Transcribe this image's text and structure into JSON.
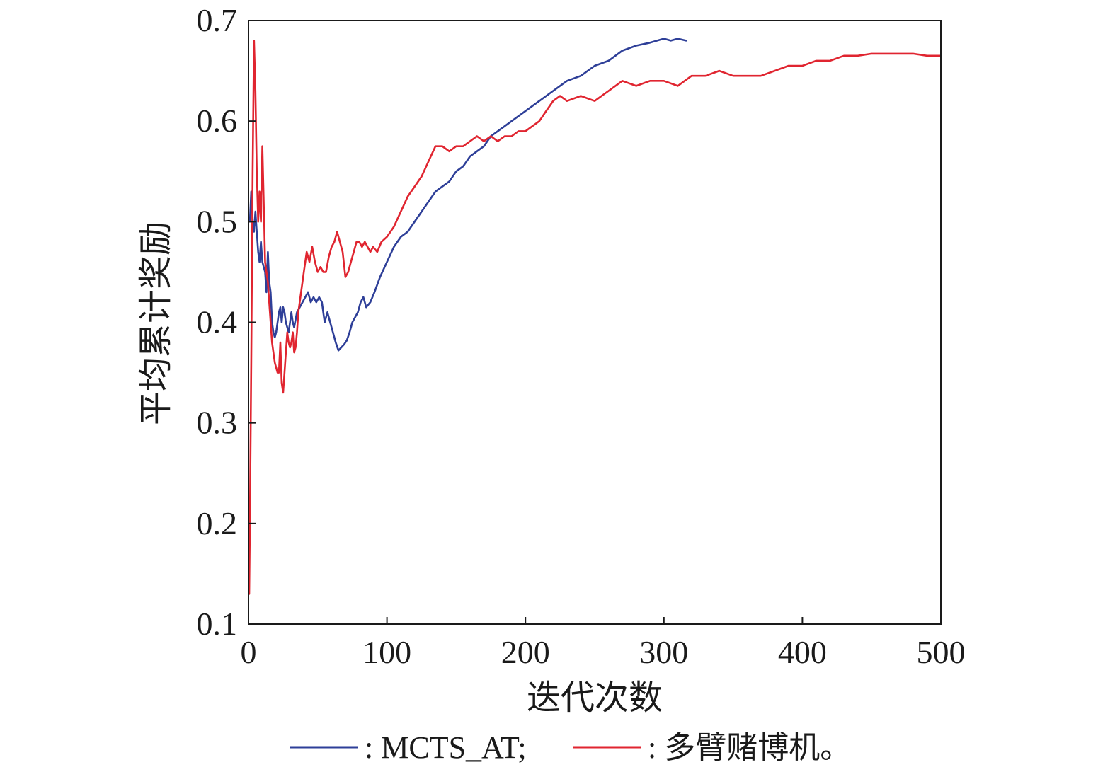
{
  "chart_data": {
    "type": "line",
    "title": "",
    "xlabel": "迭代次数",
    "ylabel": "平均累计奖励",
    "xlim": [
      0,
      500
    ],
    "ylim": [
      0.1,
      0.7
    ],
    "xticks": [
      0,
      100,
      200,
      300,
      400,
      500
    ],
    "xtick_labels": [
      "0",
      "100",
      "200",
      "300",
      "400",
      "500"
    ],
    "yticks": [
      0.1,
      0.2,
      0.3,
      0.4,
      0.5,
      0.6,
      0.7
    ],
    "ytick_labels": [
      "0.1",
      "0.2",
      "0.3",
      "0.4",
      "0.5",
      "0.6",
      "0.7"
    ],
    "grid": false,
    "legend_position": "bottom",
    "series": [
      {
        "name": "MCTS_AT",
        "legend_label": ": MCTS_AT;",
        "color": "#2e3f98",
        "points": [
          [
            1,
            0.5
          ],
          [
            2,
            0.53
          ],
          [
            3,
            0.5
          ],
          [
            4,
            0.49
          ],
          [
            5,
            0.51
          ],
          [
            6,
            0.49
          ],
          [
            7,
            0.47
          ],
          [
            8,
            0.46
          ],
          [
            9,
            0.48
          ],
          [
            10,
            0.46
          ],
          [
            12,
            0.45
          ],
          [
            13,
            0.43
          ],
          [
            14,
            0.47
          ],
          [
            15,
            0.44
          ],
          [
            16,
            0.43
          ],
          [
            17,
            0.4
          ],
          [
            18,
            0.39
          ],
          [
            19,
            0.385
          ],
          [
            20,
            0.39
          ],
          [
            21,
            0.4
          ],
          [
            22,
            0.41
          ],
          [
            23,
            0.415
          ],
          [
            24,
            0.4
          ],
          [
            25,
            0.415
          ],
          [
            26,
            0.41
          ],
          [
            27,
            0.4
          ],
          [
            28,
            0.395
          ],
          [
            29,
            0.39
          ],
          [
            30,
            0.4
          ],
          [
            31,
            0.41
          ],
          [
            32,
            0.4
          ],
          [
            33,
            0.395
          ],
          [
            35,
            0.41
          ],
          [
            37,
            0.415
          ],
          [
            39,
            0.42
          ],
          [
            41,
            0.425
          ],
          [
            43,
            0.43
          ],
          [
            45,
            0.42
          ],
          [
            47,
            0.425
          ],
          [
            49,
            0.42
          ],
          [
            51,
            0.425
          ],
          [
            53,
            0.42
          ],
          [
            55,
            0.4
          ],
          [
            57,
            0.41
          ],
          [
            59,
            0.4
          ],
          [
            61,
            0.39
          ],
          [
            63,
            0.38
          ],
          [
            65,
            0.372
          ],
          [
            67,
            0.375
          ],
          [
            69,
            0.378
          ],
          [
            71,
            0.382
          ],
          [
            73,
            0.39
          ],
          [
            75,
            0.4
          ],
          [
            77,
            0.405
          ],
          [
            79,
            0.41
          ],
          [
            81,
            0.42
          ],
          [
            83,
            0.425
          ],
          [
            85,
            0.415
          ],
          [
            88,
            0.42
          ],
          [
            91,
            0.43
          ],
          [
            95,
            0.445
          ],
          [
            100,
            0.46
          ],
          [
            105,
            0.475
          ],
          [
            110,
            0.485
          ],
          [
            115,
            0.49
          ],
          [
            120,
            0.5
          ],
          [
            125,
            0.51
          ],
          [
            130,
            0.52
          ],
          [
            135,
            0.53
          ],
          [
            140,
            0.535
          ],
          [
            145,
            0.54
          ],
          [
            150,
            0.55
          ],
          [
            155,
            0.555
          ],
          [
            160,
            0.565
          ],
          [
            165,
            0.57
          ],
          [
            170,
            0.575
          ],
          [
            175,
            0.585
          ],
          [
            180,
            0.59
          ],
          [
            185,
            0.595
          ],
          [
            190,
            0.6
          ],
          [
            195,
            0.605
          ],
          [
            200,
            0.61
          ],
          [
            210,
            0.62
          ],
          [
            220,
            0.63
          ],
          [
            230,
            0.64
          ],
          [
            240,
            0.645
          ],
          [
            250,
            0.655
          ],
          [
            260,
            0.66
          ],
          [
            270,
            0.67
          ],
          [
            280,
            0.675
          ],
          [
            290,
            0.678
          ],
          [
            300,
            0.682
          ],
          [
            305,
            0.68
          ],
          [
            310,
            0.682
          ],
          [
            316,
            0.68
          ]
        ]
      },
      {
        "name": "多臂赌博机",
        "legend_label": ": 多臂赌博机。",
        "color": "#e02530",
        "points": [
          [
            0.5,
            0.13
          ],
          [
            1,
            0.2
          ],
          [
            2,
            0.36
          ],
          [
            3,
            0.55
          ],
          [
            4,
            0.68
          ],
          [
            5,
            0.63
          ],
          [
            6,
            0.55
          ],
          [
            7,
            0.5
          ],
          [
            8,
            0.53
          ],
          [
            9,
            0.5
          ],
          [
            10,
            0.575
          ],
          [
            11,
            0.52
          ],
          [
            12,
            0.46
          ],
          [
            13,
            0.45
          ],
          [
            14,
            0.44
          ],
          [
            15,
            0.42
          ],
          [
            16,
            0.4
          ],
          [
            17,
            0.38
          ],
          [
            18,
            0.37
          ],
          [
            19,
            0.36
          ],
          [
            20,
            0.355
          ],
          [
            21,
            0.35
          ],
          [
            22,
            0.35
          ],
          [
            23,
            0.38
          ],
          [
            24,
            0.34
          ],
          [
            25,
            0.33
          ],
          [
            26,
            0.35
          ],
          [
            27,
            0.37
          ],
          [
            28,
            0.39
          ],
          [
            29,
            0.38
          ],
          [
            30,
            0.375
          ],
          [
            31,
            0.38
          ],
          [
            32,
            0.39
          ],
          [
            33,
            0.37
          ],
          [
            34,
            0.375
          ],
          [
            35,
            0.39
          ],
          [
            36,
            0.41
          ],
          [
            38,
            0.43
          ],
          [
            40,
            0.45
          ],
          [
            42,
            0.47
          ],
          [
            44,
            0.46
          ],
          [
            46,
            0.475
          ],
          [
            48,
            0.46
          ],
          [
            50,
            0.45
          ],
          [
            52,
            0.455
          ],
          [
            54,
            0.45
          ],
          [
            56,
            0.45
          ],
          [
            58,
            0.465
          ],
          [
            60,
            0.475
          ],
          [
            62,
            0.48
          ],
          [
            64,
            0.49
          ],
          [
            66,
            0.48
          ],
          [
            68,
            0.47
          ],
          [
            70,
            0.445
          ],
          [
            72,
            0.45
          ],
          [
            74,
            0.46
          ],
          [
            76,
            0.47
          ],
          [
            78,
            0.48
          ],
          [
            80,
            0.48
          ],
          [
            82,
            0.475
          ],
          [
            84,
            0.48
          ],
          [
            86,
            0.475
          ],
          [
            88,
            0.47
          ],
          [
            90,
            0.475
          ],
          [
            93,
            0.47
          ],
          [
            96,
            0.48
          ],
          [
            100,
            0.485
          ],
          [
            105,
            0.495
          ],
          [
            110,
            0.51
          ],
          [
            115,
            0.525
          ],
          [
            120,
            0.535
          ],
          [
            125,
            0.545
          ],
          [
            130,
            0.56
          ],
          [
            135,
            0.575
          ],
          [
            140,
            0.575
          ],
          [
            145,
            0.57
          ],
          [
            150,
            0.575
          ],
          [
            155,
            0.575
          ],
          [
            160,
            0.58
          ],
          [
            165,
            0.585
          ],
          [
            170,
            0.58
          ],
          [
            175,
            0.585
          ],
          [
            180,
            0.58
          ],
          [
            185,
            0.585
          ],
          [
            190,
            0.585
          ],
          [
            195,
            0.59
          ],
          [
            200,
            0.59
          ],
          [
            205,
            0.595
          ],
          [
            210,
            0.6
          ],
          [
            215,
            0.61
          ],
          [
            220,
            0.62
          ],
          [
            225,
            0.625
          ],
          [
            230,
            0.62
          ],
          [
            240,
            0.625
          ],
          [
            250,
            0.62
          ],
          [
            260,
            0.63
          ],
          [
            270,
            0.64
          ],
          [
            280,
            0.635
          ],
          [
            290,
            0.64
          ],
          [
            300,
            0.64
          ],
          [
            310,
            0.635
          ],
          [
            320,
            0.645
          ],
          [
            330,
            0.645
          ],
          [
            340,
            0.65
          ],
          [
            350,
            0.645
          ],
          [
            360,
            0.645
          ],
          [
            370,
            0.645
          ],
          [
            380,
            0.65
          ],
          [
            390,
            0.655
          ],
          [
            400,
            0.655
          ],
          [
            410,
            0.66
          ],
          [
            420,
            0.66
          ],
          [
            430,
            0.665
          ],
          [
            440,
            0.665
          ],
          [
            450,
            0.667
          ],
          [
            460,
            0.667
          ],
          [
            470,
            0.667
          ],
          [
            480,
            0.667
          ],
          [
            490,
            0.665
          ],
          [
            500,
            0.665
          ]
        ]
      }
    ]
  }
}
